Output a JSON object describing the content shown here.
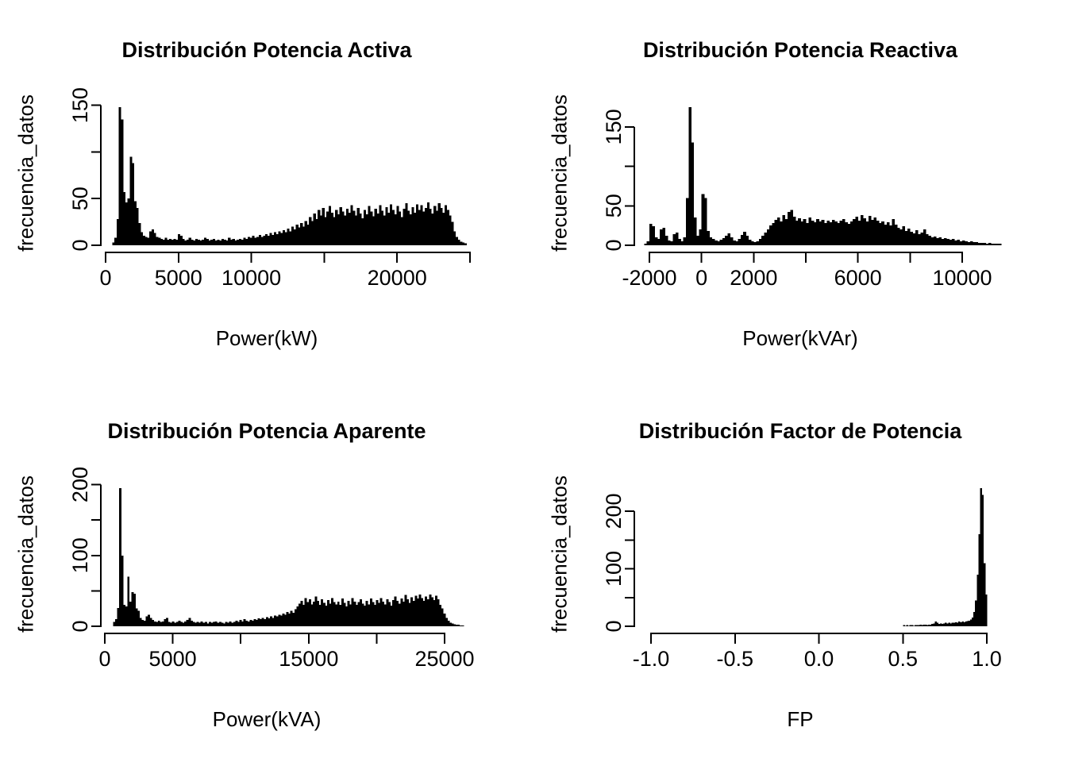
{
  "page": {
    "background": "#ffffff",
    "foreground": "#000000",
    "bar_color": "#000000",
    "figure_layout": "2x2 histograms"
  },
  "chart_data": [
    {
      "type": "bar",
      "subtype": "histogram",
      "title": "Distribución Potencia Activa",
      "xlabel": "Power(kW)",
      "ylabel": "frecuencia_datos",
      "xlim": [
        0,
        25000
      ],
      "ylim": [
        0,
        150
      ],
      "grid": false,
      "legend": "none",
      "x_ticks": [
        {
          "value": 0,
          "label": "0"
        },
        {
          "value": 5000,
          "label": "5000"
        },
        {
          "value": 10000,
          "label": "10000"
        },
        {
          "value": 15000,
          "label": ""
        },
        {
          "value": 20000,
          "label": "20000"
        },
        {
          "value": 25000,
          "label": ""
        }
      ],
      "y_ticks": [
        {
          "value": 0,
          "label": "0"
        },
        {
          "value": 50,
          "label": "50"
        },
        {
          "value": 100,
          "label": ""
        },
        {
          "value": 150,
          "label": "150"
        }
      ],
      "bins": {
        "start": 450,
        "width": 150,
        "counts": [
          3,
          8,
          28,
          148,
          135,
          57,
          46,
          50,
          95,
          88,
          47,
          40,
          24,
          14,
          10,
          9,
          8,
          15,
          17,
          13,
          9,
          8,
          7,
          6,
          8,
          6,
          7,
          6,
          7,
          6,
          12,
          10,
          7,
          5,
          6,
          8,
          6,
          5,
          7,
          6,
          5,
          6,
          8,
          7,
          5,
          6,
          7,
          5,
          6,
          5,
          7,
          6,
          5,
          8,
          6,
          7,
          5,
          6,
          7,
          6,
          8,
          7,
          9,
          8,
          10,
          8,
          9,
          11,
          9,
          10,
          12,
          10,
          13,
          11,
          14,
          12,
          15,
          13,
          16,
          14,
          18,
          15,
          20,
          17,
          22,
          19,
          24,
          20,
          26,
          22,
          30,
          26,
          34,
          28,
          38,
          32,
          40,
          30,
          36,
          42,
          35,
          30,
          38,
          33,
          41,
          36,
          32,
          39,
          35,
          43,
          37,
          32,
          40,
          34,
          29,
          38,
          33,
          42,
          36,
          31,
          39,
          34,
          43,
          37,
          32,
          41,
          35,
          44,
          38,
          33,
          42,
          36,
          30,
          39,
          45,
          37,
          33,
          41,
          35,
          44,
          38,
          43,
          36,
          40,
          46,
          39,
          34,
          42,
          37,
          45,
          40,
          35,
          43,
          38,
          32,
          25,
          15,
          9,
          6,
          4,
          3,
          2
        ]
      }
    },
    {
      "type": "bar",
      "subtype": "histogram",
      "title": "Distribución Potencia Reactiva",
      "xlabel": "Power(kVAr)",
      "ylabel": "frecuencia_datos",
      "xlim": [
        -2000,
        10000
      ],
      "ylim": [
        0,
        150
      ],
      "grid": false,
      "legend": "none",
      "x_ticks": [
        {
          "value": -2000,
          "label": "-2000"
        },
        {
          "value": 0,
          "label": "0"
        },
        {
          "value": 2000,
          "label": "2000"
        },
        {
          "value": 4000,
          "label": ""
        },
        {
          "value": 6000,
          "label": "6000"
        },
        {
          "value": 8000,
          "label": ""
        },
        {
          "value": 10000,
          "label": "10000"
        }
      ],
      "y_ticks": [
        {
          "value": 0,
          "label": "0"
        },
        {
          "value": 50,
          "label": "50"
        },
        {
          "value": 100,
          "label": ""
        },
        {
          "value": 150,
          "label": "150"
        }
      ],
      "bins": {
        "start": -2200,
        "width": 100,
        "counts": [
          2,
          5,
          27,
          24,
          10,
          8,
          20,
          22,
          12,
          6,
          5,
          14,
          16,
          8,
          5,
          10,
          60,
          175,
          130,
          35,
          12,
          20,
          65,
          60,
          18,
          10,
          8,
          6,
          5,
          7,
          9,
          12,
          15,
          10,
          6,
          5,
          8,
          13,
          17,
          12,
          7,
          5,
          4,
          5,
          8,
          12,
          16,
          20,
          25,
          28,
          32,
          35,
          30,
          38,
          33,
          42,
          45,
          36,
          31,
          34,
          30,
          33,
          28,
          35,
          31,
          29,
          33,
          30,
          32,
          28,
          31,
          29,
          32,
          30,
          28,
          31,
          33,
          29,
          27,
          30,
          33,
          36,
          31,
          38,
          34,
          30,
          37,
          32,
          35,
          31,
          28,
          30,
          26,
          29,
          25,
          33,
          26,
          22,
          20,
          24,
          18,
          21,
          17,
          15,
          19,
          14,
          16,
          20,
          14,
          12,
          10,
          11,
          9,
          10,
          8,
          9,
          8,
          7,
          8,
          6,
          7,
          5,
          6,
          5,
          4,
          5,
          4,
          4,
          3,
          3,
          3,
          2,
          3,
          2,
          2,
          2,
          2
        ]
      }
    },
    {
      "type": "bar",
      "subtype": "histogram",
      "title": "Distribución Potencia Aparente",
      "xlabel": "Power(kVA)",
      "ylabel": "frecuencia_datos",
      "xlim": [
        0,
        25000
      ],
      "ylim": [
        0,
        200
      ],
      "grid": false,
      "legend": "none",
      "x_ticks": [
        {
          "value": 0,
          "label": "0"
        },
        {
          "value": 5000,
          "label": "5000"
        },
        {
          "value": 10000,
          "label": ""
        },
        {
          "value": 15000,
          "label": "15000"
        },
        {
          "value": 20000,
          "label": ""
        },
        {
          "value": 25000,
          "label": "25000"
        }
      ],
      "y_ticks": [
        {
          "value": 0,
          "label": "0"
        },
        {
          "value": 50,
          "label": ""
        },
        {
          "value": 100,
          "label": "100"
        },
        {
          "value": 150,
          "label": ""
        },
        {
          "value": 200,
          "label": "200"
        }
      ],
      "bins": {
        "start": 600,
        "width": 150,
        "counts": [
          6,
          10,
          26,
          195,
          100,
          30,
          28,
          70,
          35,
          48,
          46,
          25,
          22,
          12,
          9,
          8,
          14,
          16,
          12,
          9,
          7,
          6,
          8,
          6,
          7,
          10,
          12,
          6,
          5,
          7,
          5,
          6,
          8,
          6,
          5,
          7,
          9,
          12,
          8,
          6,
          5,
          6,
          5,
          7,
          5,
          6,
          4,
          6,
          5,
          6,
          7,
          5,
          6,
          5,
          4,
          6,
          5,
          7,
          5,
          6,
          8,
          6,
          9,
          7,
          10,
          8,
          7,
          9,
          8,
          10,
          9,
          11,
          10,
          12,
          10,
          13,
          11,
          14,
          12,
          15,
          14,
          16,
          15,
          18,
          16,
          20,
          18,
          22,
          19,
          24,
          28,
          32,
          36,
          30,
          40,
          34,
          38,
          31,
          35,
          42,
          36,
          30,
          38,
          33,
          29,
          37,
          32,
          40,
          34,
          31,
          35,
          30,
          39,
          33,
          28,
          36,
          31,
          40,
          35,
          30,
          34,
          38,
          32,
          29,
          36,
          31,
          39,
          34,
          30,
          37,
          33,
          40,
          35,
          31,
          38,
          34,
          29,
          37,
          42,
          36,
          32,
          39,
          35,
          44,
          38,
          33,
          41,
          36,
          43,
          39,
          45,
          40,
          36,
          42,
          38,
          45,
          41,
          37,
          43,
          38,
          30,
          25,
          18,
          12,
          8,
          5,
          4,
          3,
          2,
          2,
          1,
          1
        ]
      }
    },
    {
      "type": "bar",
      "subtype": "histogram",
      "title": "Distribución Factor de Potencia",
      "xlabel": "FP",
      "ylabel": "frecuencia_datos",
      "xlim": [
        -1.0,
        1.0
      ],
      "ylim": [
        0,
        200
      ],
      "grid": false,
      "legend": "none",
      "x_ticks": [
        {
          "value": -1.0,
          "label": "-1.0"
        },
        {
          "value": -0.5,
          "label": "-0.5"
        },
        {
          "value": 0.0,
          "label": "0.0"
        },
        {
          "value": 0.5,
          "label": "0.5"
        },
        {
          "value": 1.0,
          "label": "1.0"
        }
      ],
      "y_ticks": [
        {
          "value": 0,
          "label": "0"
        },
        {
          "value": 50,
          "label": ""
        },
        {
          "value": 100,
          "label": "100"
        },
        {
          "value": 150,
          "label": ""
        },
        {
          "value": 200,
          "label": "200"
        }
      ],
      "bins": {
        "start": 0.5,
        "width": 0.01,
        "counts": [
          2,
          1,
          2,
          1,
          2,
          2,
          1,
          2,
          2,
          2,
          3,
          2,
          3,
          3,
          2,
          3,
          3,
          4,
          5,
          8,
          6,
          4,
          5,
          4,
          5,
          6,
          5,
          6,
          5,
          6,
          6,
          7,
          6,
          8,
          7,
          8,
          7,
          8,
          9,
          10,
          12,
          15,
          25,
          45,
          90,
          160,
          240,
          228,
          110,
          55
        ]
      }
    }
  ]
}
